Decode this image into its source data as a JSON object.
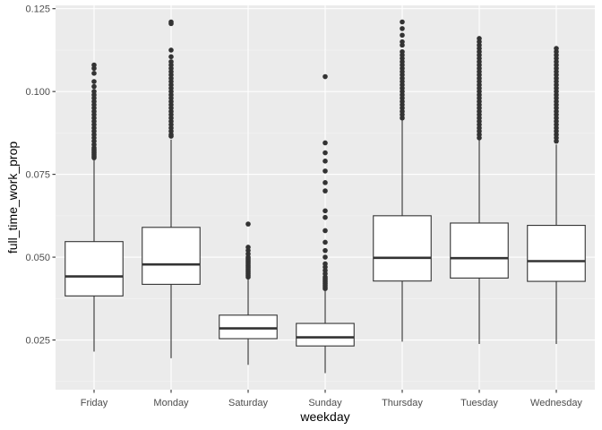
{
  "chart_data": {
    "type": "boxplot",
    "xlabel": "weekday",
    "ylabel": "full_time_work_prop",
    "ylim": [
      0.01,
      0.126
    ],
    "y_ticks": [
      0.025,
      0.05,
      0.075,
      0.1,
      0.125
    ],
    "y_tick_labels": [
      "0.025",
      "0.050",
      "0.075",
      "0.100",
      "0.125"
    ],
    "grid": true,
    "categories": [
      "Friday",
      "Monday",
      "Saturday",
      "Sunday",
      "Thursday",
      "Tuesday",
      "Wednesday"
    ],
    "boxes": [
      {
        "category": "Friday",
        "whisker_low": 0.0215,
        "q1": 0.0383,
        "median": 0.0442,
        "q3": 0.0547,
        "whisker_high": 0.0795,
        "outliers": [
          0.08,
          0.0805,
          0.081,
          0.0815,
          0.082,
          0.0825,
          0.083,
          0.084,
          0.085,
          0.086,
          0.087,
          0.088,
          0.089,
          0.09,
          0.091,
          0.092,
          0.093,
          0.094,
          0.095,
          0.096,
          0.097,
          0.098,
          0.099,
          0.1,
          0.1015,
          0.103,
          0.1055,
          0.107,
          0.108
        ]
      },
      {
        "category": "Monday",
        "whisker_low": 0.0195,
        "q1": 0.0418,
        "median": 0.0478,
        "q3": 0.059,
        "whisker_high": 0.0855,
        "outliers": [
          0.0865,
          0.087,
          0.088,
          0.089,
          0.09,
          0.091,
          0.092,
          0.093,
          0.094,
          0.095,
          0.096,
          0.097,
          0.098,
          0.099,
          0.1,
          0.101,
          0.102,
          0.103,
          0.104,
          0.105,
          0.106,
          0.107,
          0.108,
          0.109,
          0.1105,
          0.1125,
          0.1205,
          0.121
        ]
      },
      {
        "category": "Saturday",
        "whisker_low": 0.0175,
        "q1": 0.0254,
        "median": 0.0285,
        "q3": 0.0325,
        "whisker_high": 0.0435,
        "outliers": [
          0.044,
          0.0445,
          0.045,
          0.0455,
          0.046,
          0.0465,
          0.047,
          0.0475,
          0.048,
          0.0485,
          0.049,
          0.0495,
          0.05,
          0.051,
          0.052,
          0.053,
          0.06
        ]
      },
      {
        "category": "Sunday",
        "whisker_low": 0.015,
        "q1": 0.0232,
        "median": 0.0258,
        "q3": 0.03,
        "whisker_high": 0.0398,
        "outliers": [
          0.0405,
          0.041,
          0.0415,
          0.042,
          0.0425,
          0.043,
          0.0435,
          0.044,
          0.045,
          0.046,
          0.047,
          0.048,
          0.05,
          0.052,
          0.0545,
          0.058,
          0.062,
          0.064,
          0.07,
          0.0725,
          0.076,
          0.079,
          0.0815,
          0.0845,
          0.1045
        ]
      },
      {
        "category": "Thursday",
        "whisker_low": 0.0245,
        "q1": 0.0428,
        "median": 0.0498,
        "q3": 0.0625,
        "whisker_high": 0.0915,
        "outliers": [
          0.092,
          0.093,
          0.094,
          0.095,
          0.096,
          0.097,
          0.098,
          0.099,
          0.1,
          0.101,
          0.102,
          0.103,
          0.104,
          0.105,
          0.106,
          0.107,
          0.108,
          0.109,
          0.11,
          0.111,
          0.112,
          0.114,
          0.115,
          0.117,
          0.119,
          0.121
        ]
      },
      {
        "category": "Tuesday",
        "whisker_low": 0.0238,
        "q1": 0.0437,
        "median": 0.0497,
        "q3": 0.0603,
        "whisker_high": 0.0855,
        "outliers": [
          0.086,
          0.087,
          0.088,
          0.089,
          0.09,
          0.091,
          0.092,
          0.093,
          0.094,
          0.095,
          0.096,
          0.097,
          0.098,
          0.099,
          0.1,
          0.101,
          0.102,
          0.103,
          0.104,
          0.105,
          0.106,
          0.107,
          0.108,
          0.109,
          0.11,
          0.111,
          0.112,
          0.113,
          0.114,
          0.115,
          0.116
        ]
      },
      {
        "category": "Wednesday",
        "whisker_low": 0.0238,
        "q1": 0.0427,
        "median": 0.0488,
        "q3": 0.0596,
        "whisker_high": 0.084,
        "outliers": [
          0.085,
          0.086,
          0.087,
          0.088,
          0.089,
          0.09,
          0.091,
          0.092,
          0.093,
          0.094,
          0.095,
          0.096,
          0.097,
          0.098,
          0.099,
          0.1,
          0.101,
          0.102,
          0.103,
          0.104,
          0.105,
          0.106,
          0.107,
          0.108,
          0.109,
          0.11,
          0.111,
          0.112,
          0.113
        ]
      }
    ],
    "colors": {
      "panel_background": "#ebebeb",
      "grid": "#ffffff",
      "box_fill": "#ffffff",
      "box_line": "#333333",
      "tick_text": "#4d4d4d"
    }
  }
}
